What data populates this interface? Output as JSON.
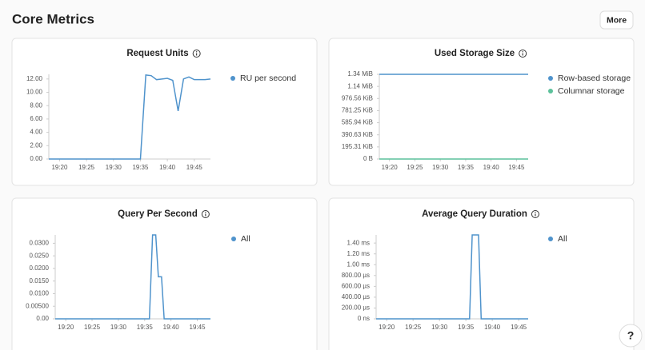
{
  "header": {
    "title": "Core Metrics",
    "more": "More"
  },
  "help": "?",
  "chart_data": [
    {
      "type": "line",
      "title": "Request Units",
      "x": [
        1098,
        1099,
        1100,
        1101,
        1102,
        1103,
        1104,
        1105,
        1106,
        1107,
        1108,
        1109,
        1110,
        1111,
        1112,
        1113,
        1114,
        1115,
        1116,
        1117,
        1118,
        1119,
        1120,
        1121,
        1122,
        1123,
        1124,
        1125,
        1126,
        1127,
        1128
      ],
      "series": [
        {
          "name": "RU per second",
          "color": "#4f93cc",
          "values": [
            0,
            0,
            0,
            0,
            0,
            0,
            0,
            0,
            0,
            0,
            0,
            0,
            0,
            0,
            0,
            0,
            0,
            0,
            12.6,
            12.5,
            11.9,
            12.0,
            12.1,
            11.8,
            7.2,
            12.0,
            12.3,
            11.9,
            11.9,
            11.9,
            12.0
          ]
        }
      ],
      "xlim": [
        1098,
        1128
      ],
      "xticks": [
        {
          "value": 1100,
          "label": "19:20"
        },
        {
          "value": 1105,
          "label": "19:25"
        },
        {
          "value": 1110,
          "label": "19:30"
        },
        {
          "value": 1115,
          "label": "19:35"
        },
        {
          "value": 1120,
          "label": "19:40"
        },
        {
          "value": 1125,
          "label": "19:45"
        }
      ],
      "ylim": [
        0,
        12.7
      ],
      "yticks": [
        {
          "value": 0,
          "label": "0.00"
        },
        {
          "value": 2,
          "label": "2.00"
        },
        {
          "value": 4,
          "label": "4.00"
        },
        {
          "value": 6,
          "label": "6.00"
        },
        {
          "value": 8,
          "label": "8.00"
        },
        {
          "value": 10,
          "label": "10.00"
        },
        {
          "value": 12,
          "label": "12.00"
        }
      ],
      "grid": false
    },
    {
      "type": "line",
      "title": "Used Storage Size",
      "x": [
        1098,
        1127.3
      ],
      "series": [
        {
          "name": "Row-based storage",
          "color": "#4f93cc",
          "values": [
            1400000,
            1400000
          ]
        },
        {
          "name": "Columnar storage",
          "color": "#5cc19b",
          "values": [
            0,
            0
          ]
        }
      ],
      "xlim": [
        1098,
        1127.3
      ],
      "xticks": [
        {
          "value": 1100,
          "label": "19:20"
        },
        {
          "value": 1105,
          "label": "19:25"
        },
        {
          "value": 1110,
          "label": "19:30"
        },
        {
          "value": 1115,
          "label": "19:35"
        },
        {
          "value": 1120,
          "label": "19:40"
        },
        {
          "value": 1125,
          "label": "19:45"
        }
      ],
      "ylim": [
        0,
        1400000
      ],
      "yticks": [
        {
          "value": 0,
          "label": "0 B"
        },
        {
          "value": 200000,
          "label": "195.31 KiB"
        },
        {
          "value": 400000,
          "label": "390.63 KiB"
        },
        {
          "value": 600000,
          "label": "585.94 KiB"
        },
        {
          "value": 800000,
          "label": "781.25 KiB"
        },
        {
          "value": 1000000,
          "label": "976.56 KiB"
        },
        {
          "value": 1200000,
          "label": "1.14 MiB"
        },
        {
          "value": 1400000,
          "label": "1.34 MiB"
        }
      ],
      "grid": false
    },
    {
      "type": "line",
      "title": "Query Per Second",
      "x": [
        1098,
        1115.9,
        1116.5,
        1117.1,
        1117.6,
        1118.2,
        1118.7,
        1127.5
      ],
      "series": [
        {
          "name": "All",
          "color": "#4f93cc",
          "values": [
            0,
            0,
            0.0333,
            0.0333,
            0.0167,
            0.0167,
            0,
            0
          ]
        }
      ],
      "xlim": [
        1098,
        1127.5
      ],
      "xticks": [
        {
          "value": 1100,
          "label": "19:20"
        },
        {
          "value": 1105,
          "label": "19:25"
        },
        {
          "value": 1110,
          "label": "19:30"
        },
        {
          "value": 1115,
          "label": "19:35"
        },
        {
          "value": 1120,
          "label": "19:40"
        },
        {
          "value": 1125,
          "label": "19:45"
        }
      ],
      "ylim": [
        0,
        0.0333
      ],
      "yticks": [
        {
          "value": 0,
          "label": "0.00"
        },
        {
          "value": 0.005,
          "label": "0.00500"
        },
        {
          "value": 0.01,
          "label": "0.0100"
        },
        {
          "value": 0.015,
          "label": "0.0150"
        },
        {
          "value": 0.02,
          "label": "0.0200"
        },
        {
          "value": 0.025,
          "label": "0.0250"
        },
        {
          "value": 0.03,
          "label": "0.0300"
        }
      ],
      "grid": false
    },
    {
      "type": "line",
      "title": "Average Query Duration",
      "x": [
        1098,
        1115.7,
        1116.2,
        1117.4,
        1117.9,
        1126.8
      ],
      "series": [
        {
          "name": "All",
          "color": "#4f93cc",
          "values": [
            0,
            0,
            1.55,
            1.55,
            0,
            0
          ]
        }
      ],
      "xlim": [
        1098,
        1126.8
      ],
      "xticks": [
        {
          "value": 1100,
          "label": "19:20"
        },
        {
          "value": 1105,
          "label": "19:25"
        },
        {
          "value": 1110,
          "label": "19:30"
        },
        {
          "value": 1115,
          "label": "19:35"
        },
        {
          "value": 1120,
          "label": "19:40"
        },
        {
          "value": 1125,
          "label": "19:45"
        }
      ],
      "ylim": [
        0,
        1.55
      ],
      "yticks": [
        {
          "value": 0,
          "label": "0 ns"
        },
        {
          "value": 0.2,
          "label": "200.00 µs"
        },
        {
          "value": 0.4,
          "label": "400.00 µs"
        },
        {
          "value": 0.6,
          "label": "600.00 µs"
        },
        {
          "value": 0.8,
          "label": "800.00 µs"
        },
        {
          "value": 1.0,
          "label": "1.00 ms"
        },
        {
          "value": 1.2,
          "label": "1.20 ms"
        },
        {
          "value": 1.4,
          "label": "1.40 ms"
        }
      ],
      "grid": false
    }
  ]
}
